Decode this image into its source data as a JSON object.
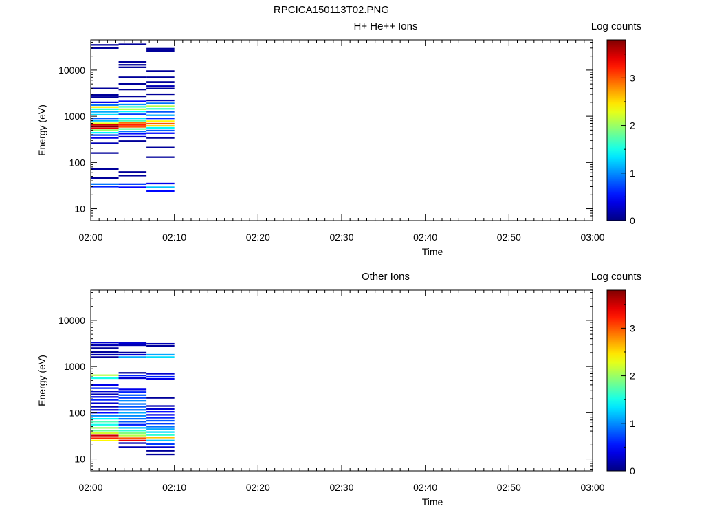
{
  "title": "RPCICA150113T02.PNG",
  "chart_data": [
    {
      "type": "heatmap",
      "title": "H+ He++ Ions",
      "xlabel": "Time",
      "ylabel": "Energy (eV)",
      "x_ticks": [
        "02:00",
        "02:10",
        "02:20",
        "02:30",
        "02:40",
        "02:50",
        "03:00"
      ],
      "xlim": [
        "02:00",
        "03:00"
      ],
      "y_scale": "log",
      "ylim": [
        5.5,
        45000
      ],
      "y_ticks": [
        10,
        100,
        1000,
        10000
      ],
      "y_tick_labels": [
        "10",
        "100",
        "1000",
        "10000"
      ],
      "colorbar": {
        "label": "Log counts",
        "range": [
          0,
          3.8
        ],
        "ticks": [
          0,
          1,
          2,
          3
        ],
        "tick_labels": [
          "0",
          "1",
          "2",
          "3"
        ]
      },
      "columns": [
        {
          "t_start": "02:00",
          "t_end": "02:03:20",
          "cells": [
            [
              35000,
              0.1
            ],
            [
              30000,
              0.1
            ],
            [
              4000,
              0.1
            ],
            [
              2900,
              0.1
            ],
            [
              2600,
              0.1
            ],
            [
              2000,
              0.4
            ],
            [
              1750,
              0.9
            ],
            [
              1580,
              2.4
            ],
            [
              1420,
              1.6
            ],
            [
              1250,
              1.1
            ],
            [
              1080,
              1.3
            ],
            [
              900,
              0.8
            ],
            [
              800,
              1.2
            ],
            [
              700,
              2.3
            ],
            [
              650,
              3.5
            ],
            [
              600,
              3.8
            ],
            [
              550,
              3.4
            ],
            [
              500,
              2.0
            ],
            [
              440,
              1.4
            ],
            [
              390,
              0.7
            ],
            [
              340,
              0.4
            ],
            [
              260,
              0.2
            ],
            [
              160,
              0.1
            ],
            [
              72,
              0.1
            ],
            [
              46,
              0.1
            ],
            [
              34,
              0.9
            ],
            [
              30,
              0.6
            ]
          ]
        },
        {
          "t_start": "02:03:20",
          "t_end": "02:06:40",
          "cells": [
            [
              36000,
              0.1
            ],
            [
              15000,
              0.1
            ],
            [
              13000,
              0.1
            ],
            [
              11500,
              0.1
            ],
            [
              7000,
              0.1
            ],
            [
              5000,
              0.1
            ],
            [
              3800,
              0.1
            ],
            [
              2700,
              0.1
            ],
            [
              2100,
              0.5
            ],
            [
              1800,
              1.0
            ],
            [
              1600,
              1.6
            ],
            [
              1420,
              2.1
            ],
            [
              1270,
              1.4
            ],
            [
              1100,
              0.7
            ],
            [
              900,
              1.3
            ],
            [
              800,
              1.7
            ],
            [
              720,
              2.9
            ],
            [
              650,
              3.2
            ],
            [
              590,
              3.0
            ],
            [
              530,
              1.8
            ],
            [
              470,
              0.9
            ],
            [
              420,
              0.5
            ],
            [
              360,
              0.3
            ],
            [
              290,
              0.1
            ],
            [
              62,
              0.1
            ],
            [
              52,
              0.1
            ],
            [
              34,
              0.7
            ],
            [
              29,
              0.5
            ]
          ]
        },
        {
          "t_start": "02:06:40",
          "t_end": "02:10",
          "cells": [
            [
              29000,
              0.1
            ],
            [
              26000,
              0.1
            ],
            [
              9500,
              0.1
            ],
            [
              7000,
              0.1
            ],
            [
              5500,
              0.1
            ],
            [
              4500,
              0.2
            ],
            [
              4000,
              0.1
            ],
            [
              3000,
              0.1
            ],
            [
              2200,
              0.2
            ],
            [
              1900,
              0.9
            ],
            [
              1650,
              2.1
            ],
            [
              1450,
              1.6
            ],
            [
              1250,
              0.8
            ],
            [
              1050,
              1.1
            ],
            [
              900,
              0.6
            ],
            [
              780,
              2.4
            ],
            [
              690,
              3.0
            ],
            [
              620,
              2.5
            ],
            [
              560,
              1.4
            ],
            [
              490,
              0.8
            ],
            [
              430,
              0.5
            ],
            [
              340,
              0.1
            ],
            [
              210,
              0.1
            ],
            [
              130,
              0.1
            ],
            [
              35,
              0.4
            ],
            [
              29,
              1.2
            ],
            [
              24,
              0.5
            ]
          ]
        }
      ]
    },
    {
      "type": "heatmap",
      "title": "Other Ions",
      "xlabel": "Time",
      "ylabel": "Energy (eV)",
      "x_ticks": [
        "02:00",
        "02:10",
        "02:20",
        "02:30",
        "02:40",
        "02:50",
        "03:00"
      ],
      "xlim": [
        "02:00",
        "03:00"
      ],
      "y_scale": "log",
      "ylim": [
        5.5,
        45000
      ],
      "y_ticks": [
        10,
        100,
        1000,
        10000
      ],
      "y_tick_labels": [
        "10",
        "100",
        "1000",
        "10000"
      ],
      "colorbar": {
        "label": "Log counts",
        "range": [
          0,
          3.8
        ],
        "ticks": [
          0,
          1,
          2,
          3
        ],
        "tick_labels": [
          "0",
          "1",
          "2",
          "3"
        ]
      },
      "columns": [
        {
          "t_start": "02:00",
          "t_end": "02:03:20",
          "cells": [
            [
              3300,
              0.3
            ],
            [
              2900,
              0.2
            ],
            [
              2500,
              0.1
            ],
            [
              2050,
              0.1
            ],
            [
              1800,
              0.2
            ],
            [
              1600,
              0.1
            ],
            [
              650,
              2.1
            ],
            [
              560,
              1.5
            ],
            [
              400,
              0.4
            ],
            [
              340,
              0.6
            ],
            [
              290,
              0.3
            ],
            [
              250,
              0.2
            ],
            [
              220,
              0.4
            ],
            [
              190,
              0.6
            ],
            [
              160,
              0.3
            ],
            [
              135,
              0.2
            ],
            [
              115,
              0.3
            ],
            [
              100,
              0.5
            ],
            [
              86,
              1.0
            ],
            [
              74,
              1.4
            ],
            [
              64,
              1.7
            ],
            [
              55,
              1.5
            ],
            [
              47,
              2.0
            ],
            [
              41,
              1.8
            ],
            [
              36,
              2.2
            ],
            [
              32,
              3.5
            ],
            [
              28,
              3.2
            ],
            [
              25,
              2.4
            ]
          ]
        },
        {
          "t_start": "02:03:20",
          "t_end": "02:06:40",
          "cells": [
            [
              3200,
              0.3
            ],
            [
              2900,
              0.2
            ],
            [
              2000,
              0.1
            ],
            [
              1800,
              0.3
            ],
            [
              1600,
              1.1
            ],
            [
              730,
              0.1
            ],
            [
              640,
              0.6
            ],
            [
              560,
              0.3
            ],
            [
              320,
              0.4
            ],
            [
              280,
              0.6
            ],
            [
              240,
              0.8
            ],
            [
              210,
              0.7
            ],
            [
              180,
              1.0
            ],
            [
              155,
              0.9
            ],
            [
              135,
              0.8
            ],
            [
              115,
              0.9
            ],
            [
              100,
              1.1
            ],
            [
              86,
              1.0
            ],
            [
              74,
              0.9
            ],
            [
              64,
              0.8
            ],
            [
              55,
              0.6
            ],
            [
              47,
              1.2
            ],
            [
              41,
              1.6
            ],
            [
              36,
              1.9
            ],
            [
              32,
              2.1
            ],
            [
              28,
              3.0
            ],
            [
              25,
              3.4
            ],
            [
              22,
              0.2
            ],
            [
              18,
              0.2
            ]
          ]
        },
        {
          "t_start": "02:06:40",
          "t_end": "02:10",
          "cells": [
            [
              3100,
              0.2
            ],
            [
              2800,
              0.1
            ],
            [
              1800,
              1.1
            ],
            [
              1600,
              1.3
            ],
            [
              700,
              0.3
            ],
            [
              600,
              0.6
            ],
            [
              540,
              0.4
            ],
            [
              210,
              0.1
            ],
            [
              140,
              0.2
            ],
            [
              120,
              0.3
            ],
            [
              104,
              0.5
            ],
            [
              90,
              0.4
            ],
            [
              78,
              0.6
            ],
            [
              67,
              0.8
            ],
            [
              58,
              0.7
            ],
            [
              50,
              0.9
            ],
            [
              44,
              1.1
            ],
            [
              38,
              1.3
            ],
            [
              33,
              1.6
            ],
            [
              29,
              2.6
            ],
            [
              25,
              1.2
            ],
            [
              21,
              0.7
            ],
            [
              18,
              0.3
            ],
            [
              15,
              0.1
            ],
            [
              12.5,
              0.1
            ]
          ]
        }
      ]
    }
  ]
}
